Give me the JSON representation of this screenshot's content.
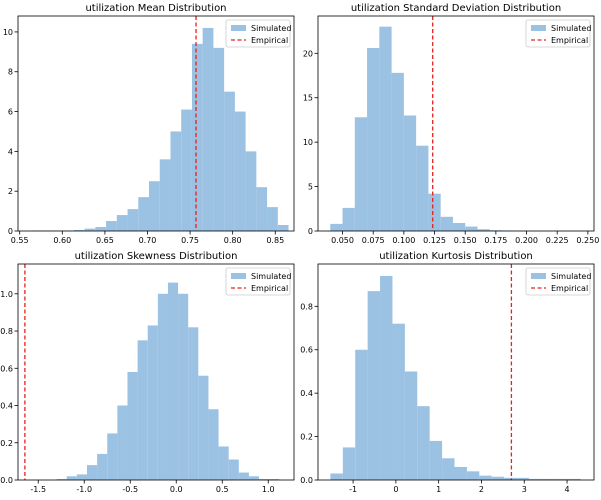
{
  "chart_data": [
    {
      "type": "histogram",
      "title": "utilization Mean Distribution",
      "xlabel": "",
      "ylabel": "",
      "xlim": [
        0.548,
        0.872
      ],
      "ylim": [
        0,
        10.8
      ],
      "x_ticks": [
        0.55,
        0.6,
        0.65,
        0.7,
        0.75,
        0.8,
        0.85
      ],
      "x_tick_labels": [
        "0.55",
        "0.60",
        "0.65",
        "0.70",
        "0.75",
        "0.80",
        "0.85"
      ],
      "y_ticks": [
        0,
        2,
        4,
        6,
        8,
        10
      ],
      "y_tick_labels": [
        "0",
        "2",
        "4",
        "6",
        "8",
        "10"
      ],
      "bins": [
        0.5632,
        0.5758,
        0.5884,
        0.601,
        0.6136,
        0.6262,
        0.6388,
        0.6514,
        0.664,
        0.6766,
        0.6892,
        0.7018,
        0.7144,
        0.727,
        0.7396,
        0.7522,
        0.7648,
        0.7774,
        0.79,
        0.8026,
        0.8152,
        0.8278,
        0.8404,
        0.853,
        0.8656
      ],
      "counts": [
        0.02,
        0.02,
        0.02,
        0.02,
        0.05,
        0.12,
        0.2,
        0.5,
        0.8,
        1.1,
        1.7,
        2.5,
        3.6,
        5.0,
        6.1,
        9.4,
        10.2,
        9.2,
        7.0,
        6.0,
        4.0,
        2.2,
        1.2,
        0.3
      ],
      "series": [
        {
          "name": "Simulated",
          "style": "bars",
          "color": "#7fb1da"
        },
        {
          "name": "Empirical",
          "style": "dashed-vline",
          "color": "#e8211c",
          "x": 0.757
        }
      ],
      "legend": {
        "location": "top-right",
        "entries": [
          "Simulated",
          "Empirical"
        ]
      }
    },
    {
      "type": "histogram",
      "title": "utilization Standard Deviation Distribution",
      "xlabel": "",
      "ylabel": "",
      "xlim": [
        0.03,
        0.255
      ],
      "ylim": [
        0,
        24.2
      ],
      "x_ticks": [
        0.05,
        0.075,
        0.1,
        0.125,
        0.15,
        0.175,
        0.2,
        0.225,
        0.25
      ],
      "x_tick_labels": [
        "0.050",
        "0.075",
        "0.100",
        "0.125",
        "0.150",
        "0.175",
        "0.200",
        "0.225",
        "0.250"
      ],
      "y_ticks": [
        0,
        5,
        10,
        15,
        20
      ],
      "y_tick_labels": [
        "0",
        "5",
        "10",
        "15",
        "20"
      ],
      "bins": [
        0.04,
        0.05,
        0.06,
        0.07,
        0.08,
        0.09,
        0.1,
        0.11,
        0.12,
        0.13,
        0.14,
        0.15,
        0.16,
        0.17,
        0.18,
        0.19,
        0.2,
        0.21,
        0.22,
        0.23,
        0.24,
        0.25
      ],
      "counts": [
        0.8,
        2.6,
        12.8,
        20.6,
        23.0,
        17.8,
        13.0,
        9.6,
        4.2,
        1.6,
        0.9,
        0.5,
        0.2,
        0.08,
        0.05,
        0.03,
        0.02,
        0.02,
        0.01,
        0.01,
        0.01
      ],
      "series": [
        {
          "name": "Simulated",
          "style": "bars",
          "color": "#7fb1da"
        },
        {
          "name": "Empirical",
          "style": "dashed-vline",
          "color": "#e8211c",
          "x": 0.1235
        }
      ],
      "legend": {
        "location": "top-right",
        "entries": [
          "Simulated",
          "Empirical"
        ]
      }
    },
    {
      "type": "histogram",
      "title": "utilization Skewness Distribution",
      "xlabel": "",
      "ylabel": "",
      "xlim": [
        -1.72,
        1.28
      ],
      "ylim": [
        0,
        1.16
      ],
      "x_ticks": [
        -1.5,
        -1.0,
        -0.5,
        0.0,
        0.5,
        1.0
      ],
      "x_tick_labels": [
        "-1.5",
        "-1.0",
        "-0.5",
        "0.0",
        "0.5",
        "1.0"
      ],
      "y_ticks": [
        0.0,
        0.2,
        0.4,
        0.6,
        0.8,
        1.0
      ],
      "y_tick_labels": [
        "0.0",
        "0.2",
        "0.4",
        "0.6",
        "0.8",
        "1.0"
      ],
      "bins": [
        -1.3,
        -1.19,
        -1.08,
        -0.97,
        -0.86,
        -0.75,
        -0.64,
        -0.53,
        -0.42,
        -0.31,
        -0.2,
        -0.09,
        0.02,
        0.13,
        0.24,
        0.35,
        0.46,
        0.57,
        0.68,
        0.79,
        0.9,
        1.01,
        1.12
      ],
      "counts": [
        0.005,
        0.02,
        0.03,
        0.08,
        0.14,
        0.25,
        0.4,
        0.58,
        0.75,
        0.83,
        1.0,
        1.06,
        1.0,
        0.82,
        0.56,
        0.38,
        0.18,
        0.11,
        0.04,
        0.02,
        0.005,
        0.005
      ],
      "series": [
        {
          "name": "Simulated",
          "style": "bars",
          "color": "#7fb1da"
        },
        {
          "name": "Empirical",
          "style": "dashed-vline",
          "color": "#e8211c",
          "x": -1.645
        }
      ],
      "legend": {
        "location": "top-right",
        "entries": [
          "Simulated",
          "Empirical"
        ]
      }
    },
    {
      "type": "histogram",
      "title": "utilization Kurtosis Distribution",
      "xlabel": "",
      "ylabel": "",
      "xlim": [
        -1.82,
        4.63
      ],
      "ylim": [
        0,
        0.995
      ],
      "x_ticks": [
        -1,
        0,
        1,
        2,
        3,
        4
      ],
      "x_tick_labels": [
        "-1",
        "0",
        "1",
        "2",
        "3",
        "4"
      ],
      "y_ticks": [
        0.0,
        0.2,
        0.4,
        0.6,
        0.8
      ],
      "y_tick_labels": [
        "0.0",
        "0.2",
        "0.4",
        "0.6",
        "0.8"
      ],
      "bins": [
        -1.53,
        -1.24,
        -0.95,
        -0.66,
        -0.37,
        -0.08,
        0.21,
        0.5,
        0.79,
        1.08,
        1.37,
        1.66,
        1.95,
        2.24,
        2.53,
        2.82,
        3.11,
        3.4,
        3.69,
        4.0,
        4.32
      ],
      "counts": [
        0.03,
        0.15,
        0.6,
        0.87,
        0.94,
        0.72,
        0.5,
        0.34,
        0.18,
        0.1,
        0.06,
        0.04,
        0.02,
        0.015,
        0.01,
        0.01,
        0.005,
        0.005,
        0.005,
        0.005
      ],
      "series": [
        {
          "name": "Simulated",
          "style": "bars",
          "color": "#7fb1da"
        },
        {
          "name": "Empirical",
          "style": "dashed-vline",
          "color": "#e8211c",
          "x": 2.7
        }
      ],
      "legend": {
        "location": "top-right",
        "entries": [
          "Simulated",
          "Empirical"
        ]
      }
    }
  ]
}
